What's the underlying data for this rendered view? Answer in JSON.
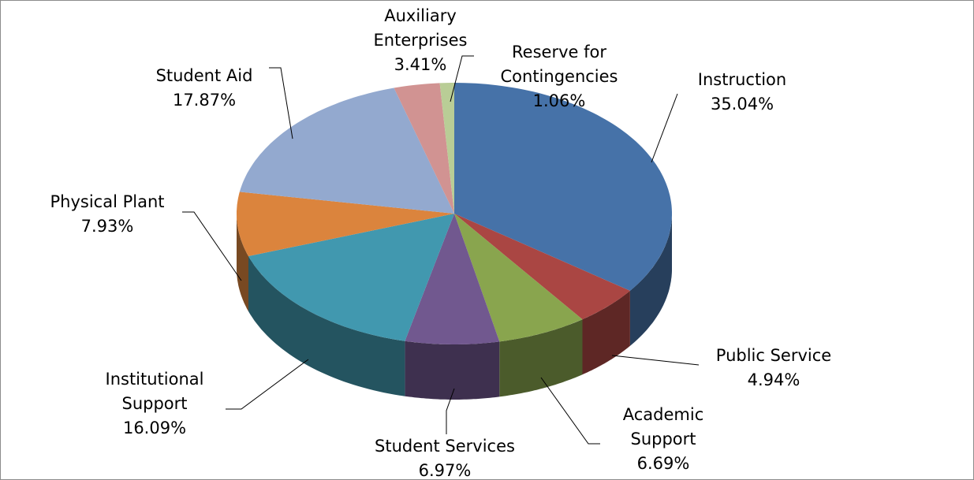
{
  "chart_data": {
    "type": "pie3d",
    "categories": [
      "Instruction",
      "Public Service",
      "Academic Support",
      "Student Services",
      "Institutional Support",
      "Physical Plant",
      "Student Aid",
      "Auxiliary Enterprises",
      "Reserve for Contingencies"
    ],
    "values": [
      35.04,
      4.94,
      6.69,
      6.97,
      16.09,
      7.93,
      17.87,
      3.41,
      1.06
    ],
    "value_labels": [
      "35.04%",
      "4.94%",
      "6.69%",
      "6.97%",
      "16.09%",
      "7.93%",
      "17.87%",
      "3.41%",
      "1.06%"
    ],
    "colors": [
      "#4672a8",
      "#aa4643",
      "#89a54e",
      "#71588f",
      "#4198af",
      "#db843d",
      "#93a9cf",
      "#d19392",
      "#b9cd96"
    ]
  }
}
